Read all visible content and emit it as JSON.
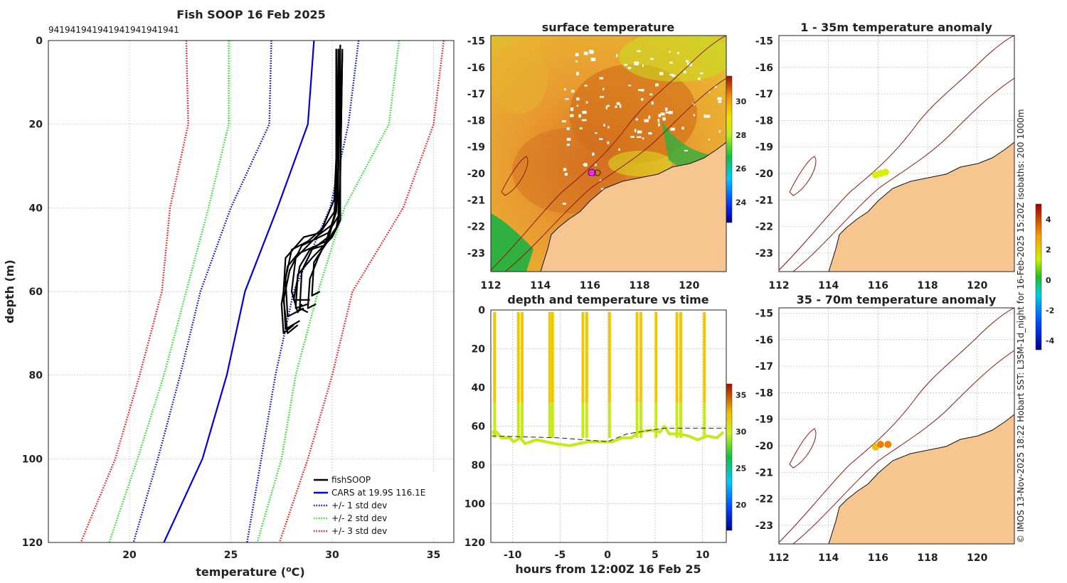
{
  "footer_text": "© IMOS 13-Nov-2025 18:22 Hobart SST: L3SM-1d_night for 16-Feb-2025 15:20Z isobaths: 200  1000m",
  "chart_data": [
    {
      "id": "profile",
      "type": "line",
      "title": "Fish SOOP 16 Feb 2025",
      "top_labels": [
        "941",
        "941",
        "941",
        "941",
        "941",
        "941",
        "941",
        "941"
      ],
      "xlabel": "temperature (",
      "xlabel_sup": "o",
      "xlabel_unit": "C)",
      "ylabel": "depth (m)",
      "xlim": [
        16,
        36
      ],
      "ylim": [
        0,
        120
      ],
      "xticks": [
        20,
        25,
        30,
        35
      ],
      "yticks": [
        0,
        20,
        40,
        60,
        80,
        100,
        120
      ],
      "legend": [
        {
          "label": "fishSOOP",
          "color": "#000000",
          "style": "solid"
        },
        {
          "label": "CARS at 19.9S 116.1E",
          "color": "#0000dd",
          "style": "solid"
        },
        {
          "label": "+/- 1 std dev",
          "color": "#0000dd",
          "style": "dotted"
        },
        {
          "label": "+/- 2 std dev",
          "color": "#22dd22",
          "style": "dotted"
        },
        {
          "label": "+/- 3 std dev",
          "color": "#ee1111",
          "style": "dotted"
        }
      ],
      "series": [
        {
          "name": "CARS",
          "color": "#0000dd",
          "style": "solid",
          "points": [
            [
              29.1,
              0
            ],
            [
              28.8,
              20
            ],
            [
              27.3,
              40
            ],
            [
              25.7,
              60
            ],
            [
              24.8,
              80
            ],
            [
              23.6,
              100
            ],
            [
              21.7,
              120
            ]
          ]
        },
        {
          "name": "+1 std",
          "color": "#0000dd",
          "style": "dotted",
          "points": [
            [
              31.3,
              0
            ],
            [
              30.8,
              20
            ],
            [
              29.9,
              40
            ],
            [
              28.1,
              60
            ],
            [
              27.2,
              80
            ],
            [
              26.5,
              100
            ],
            [
              25.8,
              120
            ]
          ]
        },
        {
          "name": "-1 std",
          "color": "#0000dd",
          "style": "dotted",
          "points": [
            [
              27.0,
              0
            ],
            [
              26.9,
              20
            ],
            [
              25.0,
              40
            ],
            [
              23.5,
              60
            ],
            [
              22.5,
              80
            ],
            [
              21.4,
              100
            ],
            [
              20.2,
              120
            ]
          ]
        },
        {
          "name": "+2 std",
          "color": "#22dd22",
          "style": "dotted",
          "points": [
            [
              33.3,
              0
            ],
            [
              32.8,
              20
            ],
            [
              30.6,
              40
            ],
            [
              29.3,
              60
            ],
            [
              28.2,
              80
            ],
            [
              27.5,
              100
            ],
            [
              26.3,
              120
            ]
          ]
        },
        {
          "name": "-2 std",
          "color": "#22dd22",
          "style": "dotted",
          "points": [
            [
              24.9,
              0
            ],
            [
              24.9,
              20
            ],
            [
              23.9,
              40
            ],
            [
              22.8,
              60
            ],
            [
              21.7,
              80
            ],
            [
              20.4,
              100
            ],
            [
              19.0,
              120
            ]
          ]
        },
        {
          "name": "+3 std",
          "color": "#ee1111",
          "style": "dotted",
          "points": [
            [
              35.5,
              0
            ],
            [
              35.0,
              20
            ],
            [
              33.5,
              40
            ],
            [
              31.0,
              60
            ],
            [
              30.0,
              80
            ],
            [
              28.8,
              100
            ],
            [
              27.4,
              120
            ]
          ]
        },
        {
          "name": "-3 std",
          "color": "#ee1111",
          "style": "dotted",
          "points": [
            [
              22.8,
              0
            ],
            [
              22.9,
              20
            ],
            [
              22.0,
              40
            ],
            [
              21.6,
              60
            ],
            [
              20.5,
              80
            ],
            [
              19.3,
              100
            ],
            [
              17.6,
              120
            ]
          ]
        }
      ],
      "casts": [
        [
          [
            30.3,
            2
          ],
          [
            30.3,
            30
          ],
          [
            30.2,
            40
          ],
          [
            30.0,
            44
          ],
          [
            29.2,
            47
          ],
          [
            28.2,
            52
          ],
          [
            28.0,
            60
          ],
          [
            28.3,
            65
          ],
          [
            28.5,
            63
          ]
        ],
        [
          [
            30.4,
            1
          ],
          [
            30.3,
            30
          ],
          [
            30.3,
            42
          ],
          [
            29.8,
            46
          ],
          [
            28.5,
            49
          ],
          [
            27.9,
            55
          ],
          [
            27.6,
            62
          ],
          [
            27.8,
            70
          ],
          [
            28.3,
            68
          ]
        ],
        [
          [
            30.2,
            2
          ],
          [
            30.2,
            28
          ],
          [
            30.1,
            38
          ],
          [
            29.5,
            45
          ],
          [
            28.8,
            48
          ],
          [
            28.0,
            50
          ],
          [
            27.7,
            57
          ],
          [
            27.8,
            66
          ],
          [
            28.6,
            64
          ]
        ],
        [
          [
            30.5,
            2
          ],
          [
            30.4,
            32
          ],
          [
            30.4,
            43
          ],
          [
            30.0,
            47
          ],
          [
            29.0,
            52
          ],
          [
            28.3,
            56
          ],
          [
            28.2,
            64
          ],
          [
            28.8,
            63
          ]
        ],
        [
          [
            30.3,
            3
          ],
          [
            30.2,
            36
          ],
          [
            30.1,
            41
          ],
          [
            29.4,
            46
          ],
          [
            28.6,
            47
          ],
          [
            27.7,
            52
          ],
          [
            27.6,
            60
          ],
          [
            27.7,
            69
          ],
          [
            28.4,
            67
          ]
        ],
        [
          [
            30.4,
            2
          ],
          [
            30.4,
            34
          ],
          [
            30.3,
            44
          ],
          [
            29.6,
            49
          ],
          [
            28.9,
            50
          ],
          [
            28.4,
            54
          ],
          [
            28.1,
            62
          ],
          [
            28.9,
            62
          ]
        ],
        [
          [
            30.3,
            2
          ],
          [
            30.3,
            31
          ],
          [
            30.2,
            40
          ],
          [
            29.9,
            46
          ],
          [
            29.3,
            52
          ],
          [
            28.9,
            57
          ],
          [
            28.8,
            64
          ],
          [
            29.2,
            63
          ]
        ],
        [
          [
            30.2,
            2
          ],
          [
            30.2,
            35
          ],
          [
            30.1,
            42
          ],
          [
            29.7,
            48
          ],
          [
            28.3,
            51
          ],
          [
            27.8,
            54
          ],
          [
            27.5,
            63
          ],
          [
            27.6,
            70
          ],
          [
            28.1,
            68
          ]
        ],
        [
          [
            30.5,
            3
          ],
          [
            30.4,
            33
          ],
          [
            30.4,
            39
          ],
          [
            30.2,
            45
          ],
          [
            29.5,
            50
          ],
          [
            29.1,
            53
          ],
          [
            29.0,
            61
          ],
          [
            29.4,
            60
          ]
        ],
        [
          [
            30.3,
            2
          ],
          [
            30.3,
            30
          ],
          [
            30.2,
            41
          ],
          [
            29.8,
            47
          ],
          [
            29.0,
            50
          ],
          [
            28.5,
            55
          ],
          [
            28.4,
            64
          ],
          [
            28.8,
            65
          ]
        ]
      ]
    },
    {
      "id": "sst_map",
      "type": "heatmap",
      "title": "surface temperature",
      "xticks": [
        "112",
        "114",
        "116",
        "118",
        "120"
      ],
      "yticks": [
        "-15",
        "-16",
        "-17",
        "-18",
        "-19",
        "-20",
        "-21",
        "-22",
        "-23"
      ],
      "xlim": [
        112,
        121.5
      ],
      "ylim": [
        -23.7,
        -14.8
      ],
      "colorbar_ticks": [
        "24",
        "26",
        "28",
        "30"
      ],
      "colorbar_range": [
        22.8,
        31.5
      ]
    },
    {
      "id": "depth_time",
      "type": "scatter",
      "title": "depth and temperature vs time",
      "xlabel": "hours from 12:00Z 16 Feb 25",
      "xticks": [
        "-10",
        "-5",
        "0",
        "5",
        "10"
      ],
      "yticks": [
        "0",
        "20",
        "40",
        "60",
        "80",
        "100",
        "120"
      ],
      "xlim": [
        -12.3,
        12.5
      ],
      "ylim": [
        0,
        120
      ],
      "colorbar_ticks": [
        "20",
        "25",
        "30",
        "35"
      ],
      "colorbar_range": [
        16.5,
        36.5
      ],
      "dive_times": [
        -11.9,
        -9.4,
        -9.0,
        -6.1,
        -5.8,
        -2.6,
        -2.2,
        0.2,
        3.1,
        3.5,
        5.1,
        7.3,
        7.7,
        10.2
      ],
      "bottom_profile": [
        [
          -12.2,
          63
        ],
        [
          -11.7,
          63
        ],
        [
          -11.2,
          66
        ],
        [
          -10.3,
          66
        ],
        [
          -9.9,
          68
        ],
        [
          -9.2,
          66
        ],
        [
          -8.7,
          69
        ],
        [
          -7.5,
          67
        ],
        [
          -6.5,
          68
        ],
        [
          -5.5,
          69
        ],
        [
          -4.0,
          70
        ],
        [
          -3.0,
          69
        ],
        [
          -2.0,
          68
        ],
        [
          -1.5,
          68
        ],
        [
          -0.5,
          68
        ],
        [
          0.5,
          68
        ],
        [
          1.5,
          66
        ],
        [
          2.5,
          66
        ],
        [
          3.3,
          63
        ],
        [
          4.5,
          62
        ],
        [
          5.5,
          63
        ],
        [
          6.0,
          60
        ],
        [
          6.5,
          64
        ],
        [
          7.5,
          64
        ],
        [
          8.5,
          65
        ],
        [
          9.5,
          67
        ],
        [
          10.5,
          65
        ],
        [
          11.5,
          66
        ],
        [
          12.2,
          63
        ]
      ],
      "reference_line": [
        [
          -12.2,
          65
        ],
        [
          -5,
          66
        ],
        [
          0,
          68
        ],
        [
          2,
          64
        ],
        [
          6,
          61
        ],
        [
          12.5,
          61
        ]
      ]
    },
    {
      "id": "anom_1_35",
      "type": "scatter",
      "title": "1 - 35m temperature anomaly",
      "xticks": [
        "112",
        "114",
        "116",
        "118",
        "120"
      ],
      "yticks": [
        "-15",
        "-16",
        "-17",
        "-18",
        "-19",
        "-20",
        "-21",
        "-22",
        "-23"
      ],
      "points": [
        {
          "lon": 115.9,
          "lat": -20.05,
          "anomaly": 1.2
        },
        {
          "lon": 116.1,
          "lat": -20.0,
          "anomaly": 1.0
        },
        {
          "lon": 116.3,
          "lat": -19.95,
          "anomaly": 1.1
        }
      ]
    },
    {
      "id": "anom_35_70",
      "type": "scatter",
      "title": "35 - 70m temperature anomaly",
      "xticks": [
        "112",
        "114",
        "116",
        "118",
        "120"
      ],
      "yticks": [
        "-15",
        "-16",
        "-17",
        "-18",
        "-19",
        "-20",
        "-21",
        "-22",
        "-23"
      ],
      "points": [
        {
          "lon": 115.9,
          "lat": -20.05,
          "anomaly": 2.4
        },
        {
          "lon": 116.1,
          "lat": -19.95,
          "anomaly": 2.7
        },
        {
          "lon": 116.4,
          "lat": -19.95,
          "anomaly": 3.1
        }
      ]
    },
    {
      "id": "anomaly_colorbar",
      "type": "heatmap",
      "colorbar_ticks": [
        "4",
        "2",
        "0",
        "-2",
        "-4"
      ],
      "colorbar_range": [
        -4.6,
        5.0
      ]
    }
  ]
}
